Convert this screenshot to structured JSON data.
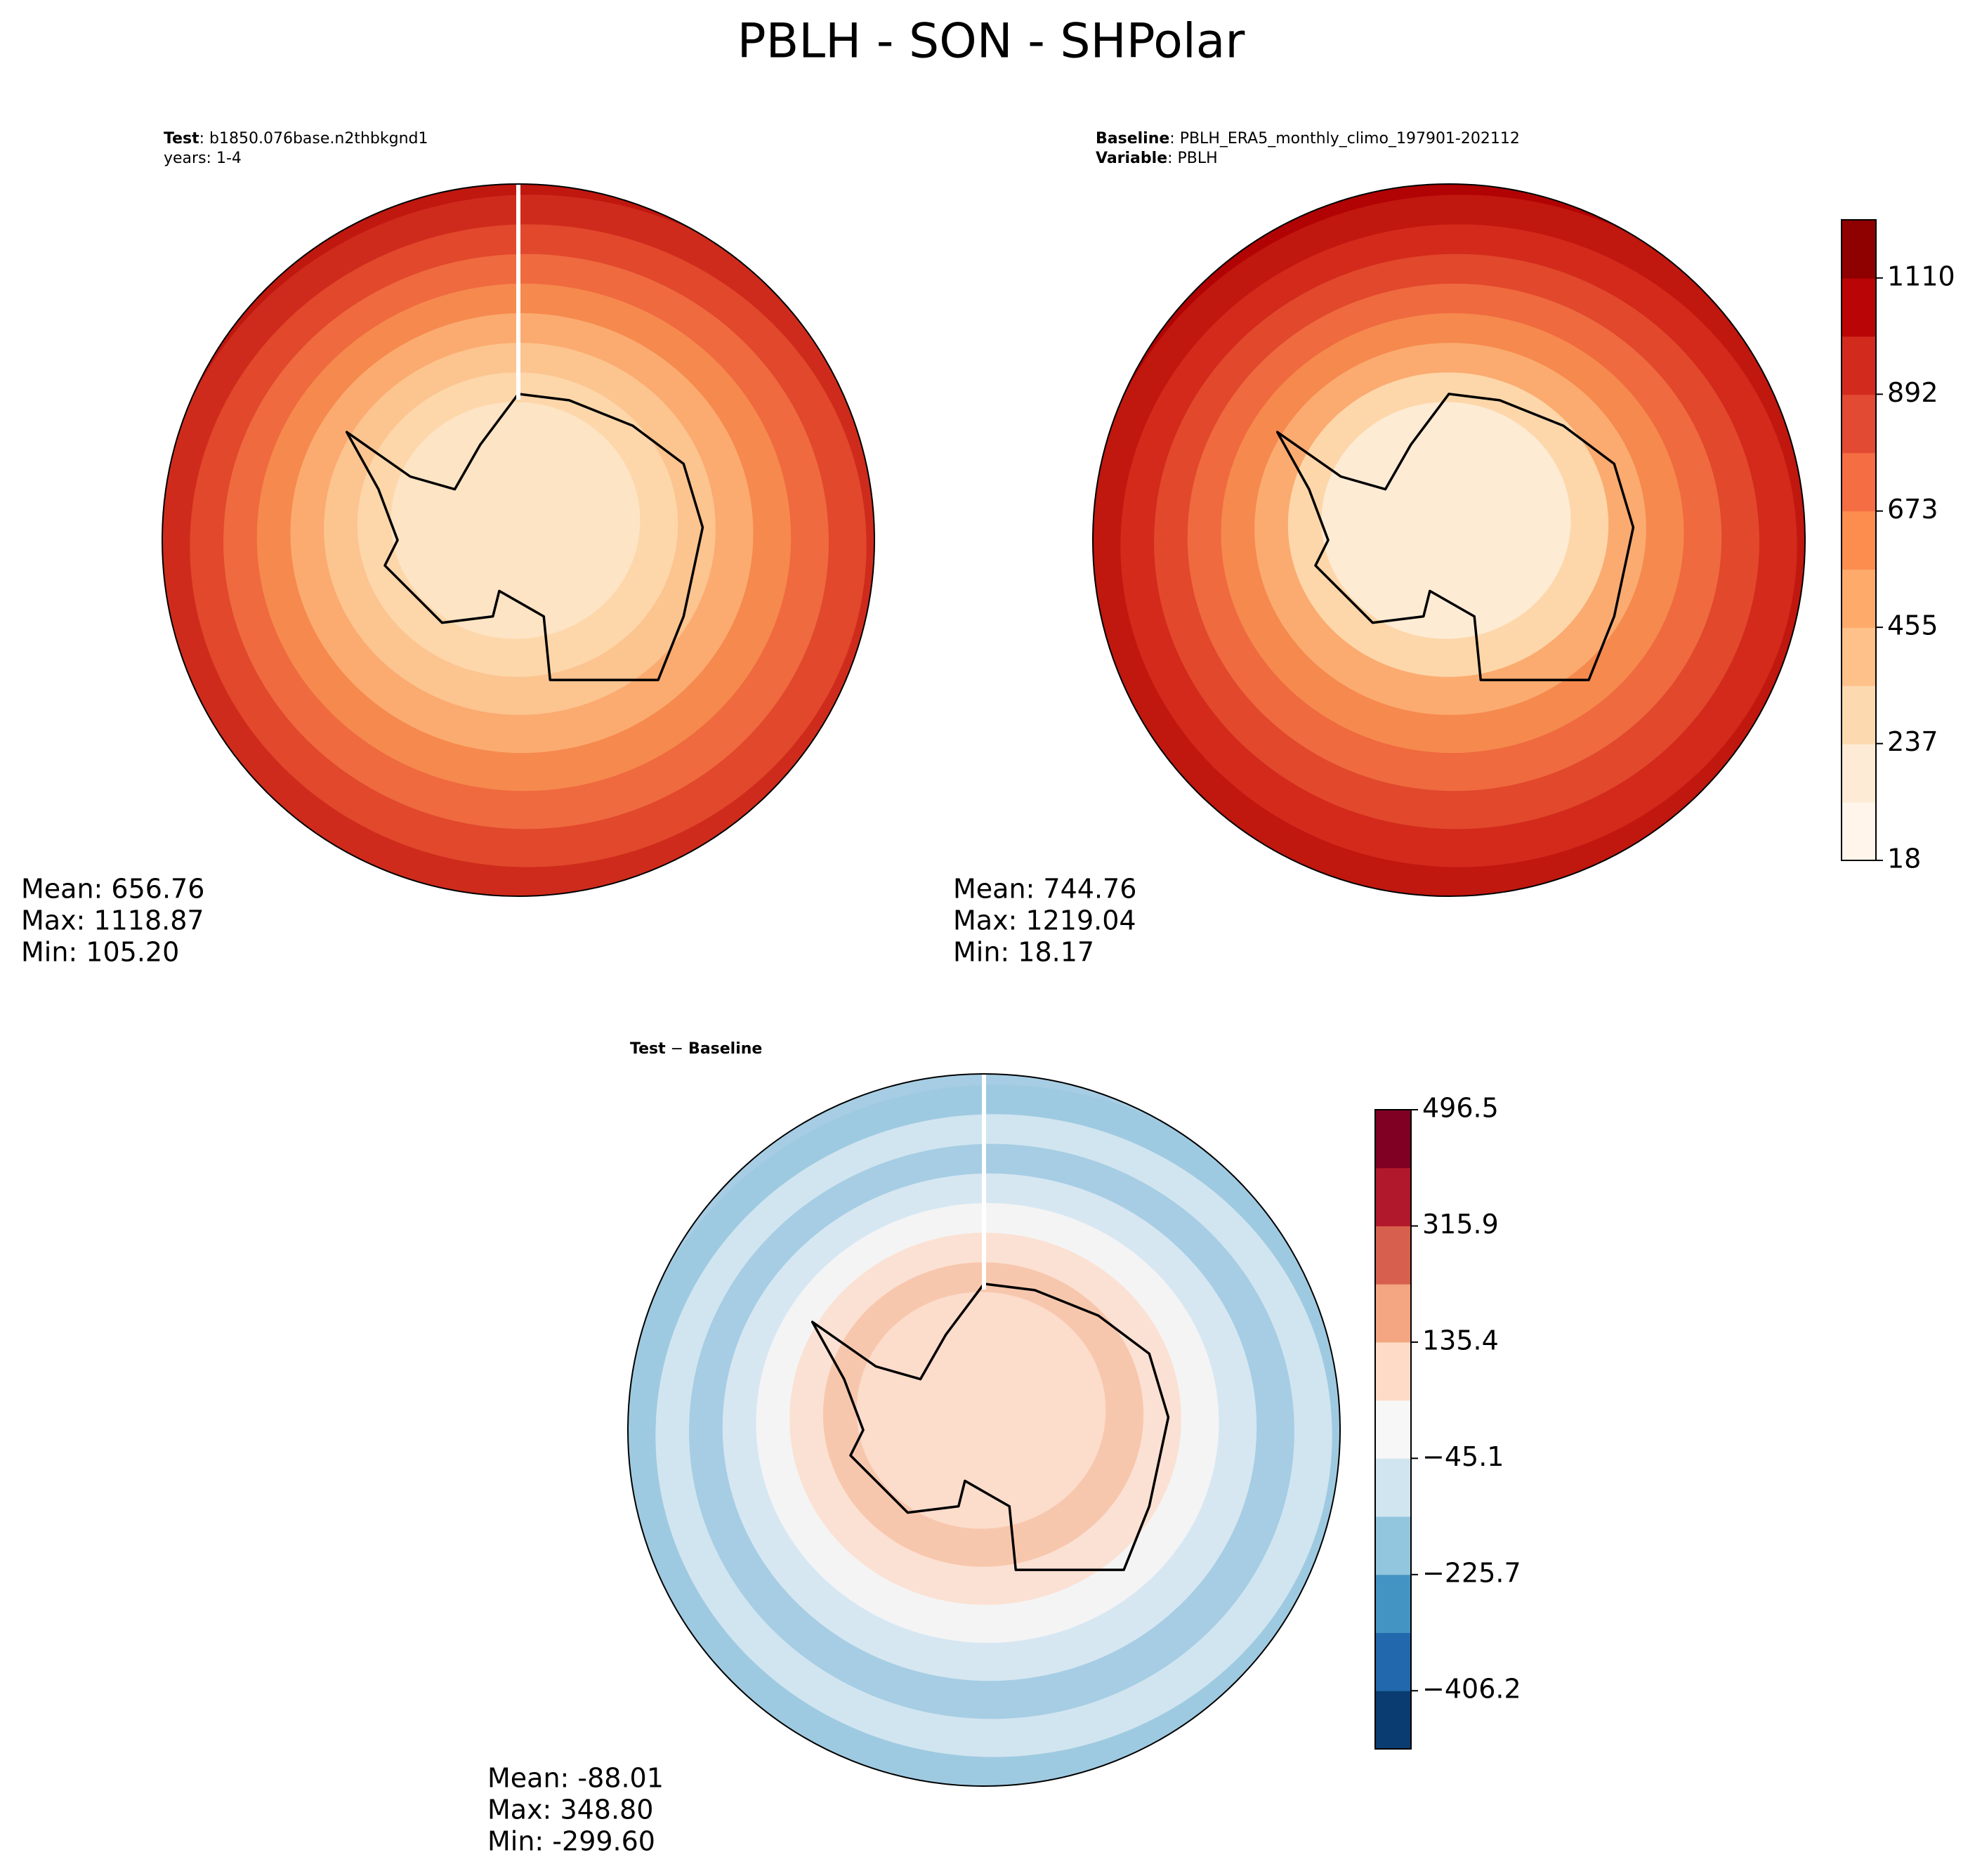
{
  "title": "PBLH - SON - SHPolar",
  "chart_data": [
    {
      "type": "map",
      "header": [
        [
          {
            "text": "Test",
            "bold": true
          },
          {
            "text": ": b1850.076base.n2thbkgnd1",
            "bold": false
          }
        ],
        [
          {
            "text": "years: 1-4",
            "bold": false
          }
        ]
      ],
      "stats": [
        "Mean: 656.76",
        "Max: 1118.87",
        "Min: 105.20"
      ],
      "rings": [
        "#c0170f",
        "#cf2b1c",
        "#e1482c",
        "#ef6a3f",
        "#f6894e",
        "#fbab70",
        "#fcc48f",
        "#fdd7aa",
        "#fde4c4"
      ]
    },
    {
      "type": "map",
      "header": [
        [
          {
            "text": "Baseline",
            "bold": true
          },
          {
            "text": ": PBLH_ERA5_monthly_climo_197901-202112",
            "bold": false
          }
        ],
        [
          {
            "text": "Variable",
            "bold": true
          },
          {
            "text": ": PBLH",
            "bold": false
          }
        ]
      ],
      "stats": [
        "Mean: 744.76",
        "Max: 1219.04",
        "Min: 18.17"
      ],
      "rings": [
        "#b10303",
        "#c0170f",
        "#d32a1c",
        "#e1482c",
        "#ef6a3f",
        "#f6894e",
        "#fbab70",
        "#fdd7aa",
        "#fdebd4"
      ],
      "colorbar": {
        "ylim": [
          18,
          1219
        ],
        "yticks": [
          18,
          237,
          455,
          673,
          892,
          1110
        ],
        "colors": [
          "#fff5eb",
          "#feebd6",
          "#fdd9b0",
          "#fdc189",
          "#fdaa6b",
          "#fc8d4e",
          "#f46d43",
          "#e34a33",
          "#d22b1e",
          "#b90505",
          "#8f0000"
        ]
      }
    },
    {
      "type": "map",
      "header": [
        [
          {
            "text": "Test",
            "bold": true
          },
          {
            "text": " − ",
            "bold": false
          },
          {
            "text": "Baseline",
            "bold": true
          }
        ]
      ],
      "stats": [
        "Mean: -88.01",
        "Max: 348.80",
        "Min: -299.60"
      ],
      "rings": [
        "#a6cde3",
        "#9ecae1",
        "#d1e5f0",
        "#a6cde3",
        "#d6e7f2",
        "#f4f4f4",
        "#fbe1d3",
        "#f7c7ad",
        "#fcdccb"
      ],
      "colorbar": {
        "ylim": [
          -496.5,
          496.5
        ],
        "yticks": [
          {
            "value": -406.2,
            "label": "−406.2"
          },
          {
            "value": -225.7,
            "label": "−225.7"
          },
          {
            "value": -45.1,
            "label": "−45.1"
          },
          135.4,
          315.9,
          496.5
        ],
        "colors": [
          "#0a3c71",
          "#2168ac",
          "#4393c3",
          "#92c5de",
          "#d1e5f0",
          "#f7f7f7",
          "#fddbc7",
          "#f4a582",
          "#d6604d",
          "#b2182b",
          "#7f0022"
        ]
      }
    }
  ]
}
